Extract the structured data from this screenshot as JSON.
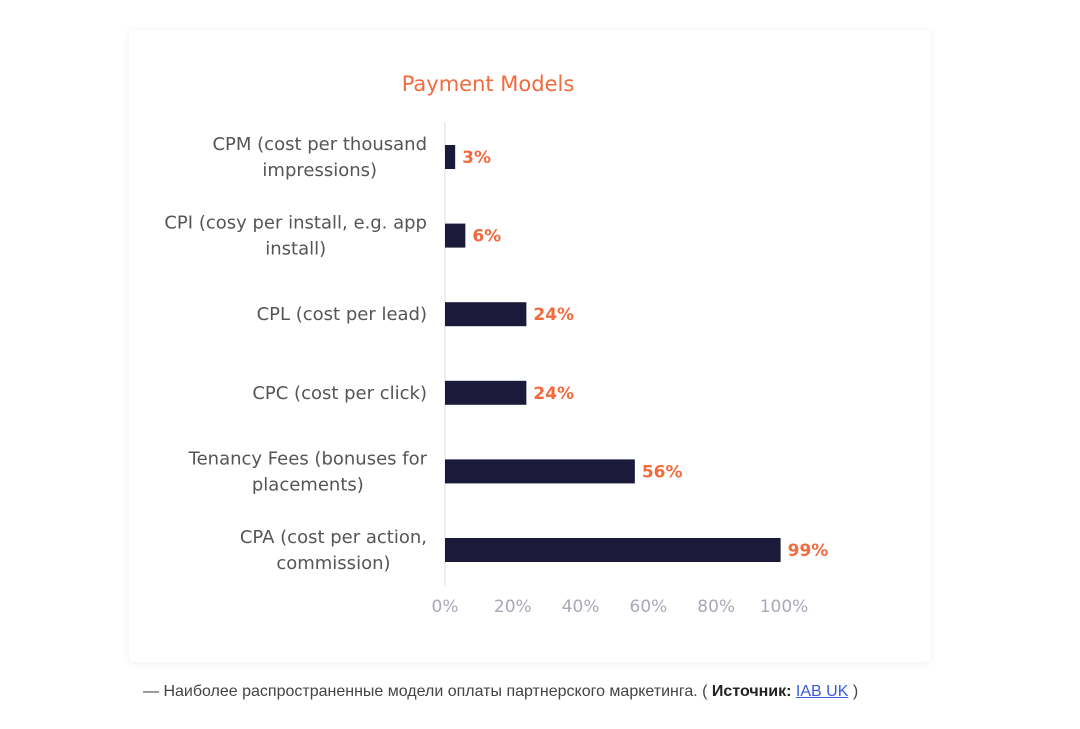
{
  "colors": {
    "bar": "#1b1a3a",
    "accent": "#f26a3d",
    "category_text": "#555555",
    "tick_text": "#a8a8b8",
    "axis": "#dddddd"
  },
  "chart_data": {
    "type": "bar",
    "orientation": "horizontal",
    "title": "Payment Models",
    "categories": [
      [
        "CPM (cost per thousand",
        "impressions)"
      ],
      [
        "CPI (cosy per install, e.g. app",
        "install)"
      ],
      [
        "CPL (cost per lead)"
      ],
      [
        "CPC (cost per click)"
      ],
      [
        "Tenancy Fees (bonuses for",
        "placements)"
      ],
      [
        "CPA (cost per action,",
        "commission)"
      ]
    ],
    "values": [
      3,
      6,
      24,
      24,
      56,
      99
    ],
    "value_labels": [
      "3%",
      "6%",
      "24%",
      "24%",
      "56%",
      "99%"
    ],
    "xlim": [
      0,
      100
    ],
    "xticks": [
      0,
      20,
      40,
      60,
      80,
      100
    ],
    "xtick_labels": [
      "0%",
      "20%",
      "40%",
      "60%",
      "80%",
      "100%"
    ],
    "grid": false,
    "legend": "none"
  },
  "caption": {
    "prefix": "— Наиболее распространенные модели оплаты партнерского маркетинга. ( ",
    "source_label": "Источник:",
    "link_text": "IAB UK",
    "suffix": " )"
  }
}
